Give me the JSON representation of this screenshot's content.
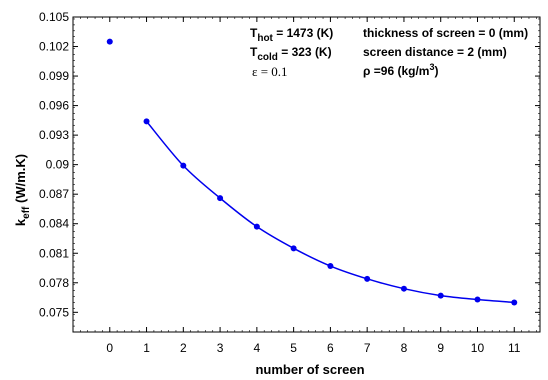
{
  "chart_data": {
    "type": "line",
    "xlabel": "number of screen",
    "ylabel_main": "k",
    "ylabel_sub": "eff",
    "ylabel_unit": " (W/m.K)",
    "xlim": [
      -1,
      11.7
    ],
    "ylim": [
      0.073,
      0.105
    ],
    "x_ticks": [
      0,
      1,
      2,
      3,
      4,
      5,
      6,
      7,
      8,
      9,
      10,
      11
    ],
    "y_ticks": [
      0.075,
      0.078,
      0.081,
      0.084,
      0.087,
      0.09,
      0.093,
      0.096,
      0.099,
      0.102,
      0.105
    ],
    "y_tick_labels": [
      "0.075",
      "0.078",
      "0.081",
      "0.084",
      "0.087",
      "0.09",
      "0.093",
      "0.096",
      "0.099",
      "0.102",
      "0.105"
    ],
    "grid": false,
    "series": [
      {
        "color": "#0000ee",
        "x": [
          0,
          1,
          2,
          3,
          4,
          5,
          6,
          7,
          8,
          9,
          10,
          11
        ],
        "y": [
          0.1025,
          0.0944,
          0.0899,
          0.0866,
          0.0837,
          0.0815,
          0.0797,
          0.0784,
          0.0774,
          0.0767,
          0.0763,
          0.076
        ],
        "curve_starts_at_index": 1
      }
    ],
    "annotations": {
      "t_hot_main": "T",
      "t_hot_sub": "hot",
      "t_hot_value": " = 1473 (K)",
      "t_cold_main": "T",
      "t_cold_sub": "cold",
      "t_cold_value": " = 323 (K)",
      "emissivity": "ε = 0.1",
      "thickness": "thickness of screen = 0 (mm)",
      "distance": "screen distance = 2 (mm)",
      "density_main": "ρ =96 (kg/m",
      "density_sup": "3",
      "density_close": ")"
    }
  }
}
